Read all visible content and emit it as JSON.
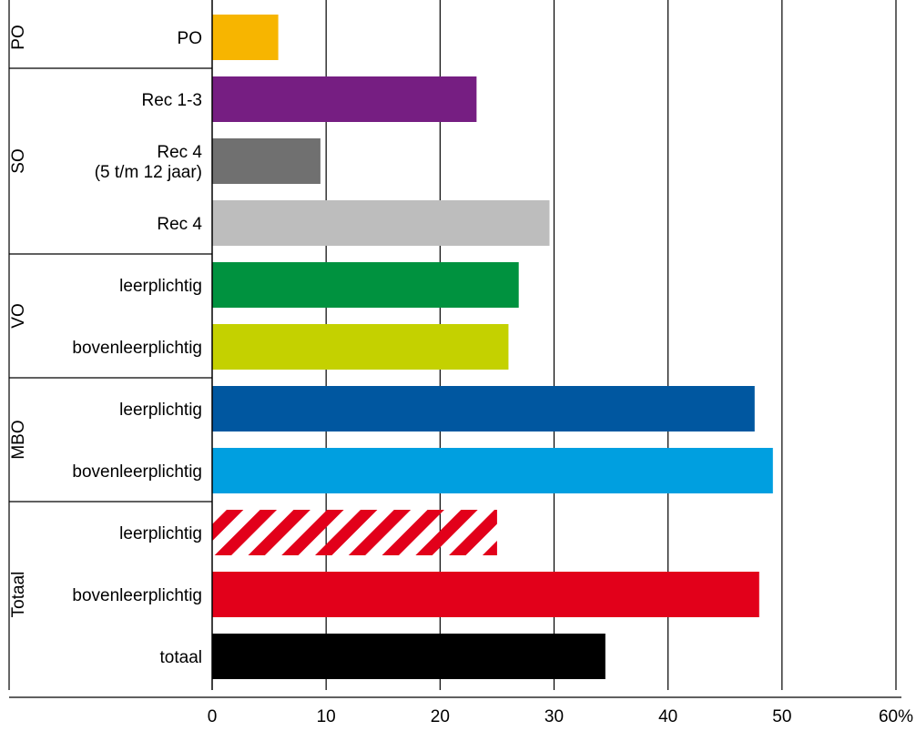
{
  "chart_data": {
    "type": "bar",
    "orientation": "horizontal",
    "xlim": [
      0,
      60
    ],
    "ticks": [
      {
        "value": 0,
        "label": "0"
      },
      {
        "value": 10,
        "label": "10"
      },
      {
        "value": 20,
        "label": "20"
      },
      {
        "value": 30,
        "label": "30"
      },
      {
        "value": 40,
        "label": "40"
      },
      {
        "value": 50,
        "label": "50"
      },
      {
        "value": 60,
        "label": "60%"
      }
    ],
    "grid": "vertical",
    "legend": "none",
    "groups": [
      {
        "name": "PO",
        "bars": [
          {
            "label": "PO",
            "value": 5.8,
            "color": "#F7B500",
            "pattern": "solid"
          }
        ]
      },
      {
        "name": "SO",
        "bars": [
          {
            "label": "Rec 1-3",
            "value": 23.2,
            "color": "#761E82",
            "pattern": "solid"
          },
          {
            "label": "Rec 4\n(5 t/m 12 jaar)",
            "value": 9.5,
            "color": "#707070",
            "pattern": "solid"
          },
          {
            "label": "Rec 4",
            "value": 29.6,
            "color": "#BDBDBD",
            "pattern": "solid"
          }
        ]
      },
      {
        "name": "VO",
        "bars": [
          {
            "label": "leerplichtig",
            "value": 26.9,
            "color": "#00923F",
            "pattern": "solid"
          },
          {
            "label": "bovenleerplichtig",
            "value": 26.0,
            "color": "#C4D100",
            "pattern": "solid"
          }
        ]
      },
      {
        "name": "MBO",
        "bars": [
          {
            "label": "leerplichtig",
            "value": 47.6,
            "color": "#0057A0",
            "pattern": "solid"
          },
          {
            "label": "bovenleerplichtig",
            "value": 49.2,
            "color": "#009FE0",
            "pattern": "solid"
          }
        ]
      },
      {
        "name": "Totaal",
        "bars": [
          {
            "label": "leerplichtig",
            "value": 25.0,
            "color": "#E2001A",
            "pattern": "striped"
          },
          {
            "label": "bovenleerplichtig",
            "value": 48.0,
            "color": "#E2001A",
            "pattern": "solid"
          },
          {
            "label": "totaal",
            "value": 34.5,
            "color": "#000000",
            "pattern": "solid"
          }
        ]
      }
    ]
  }
}
